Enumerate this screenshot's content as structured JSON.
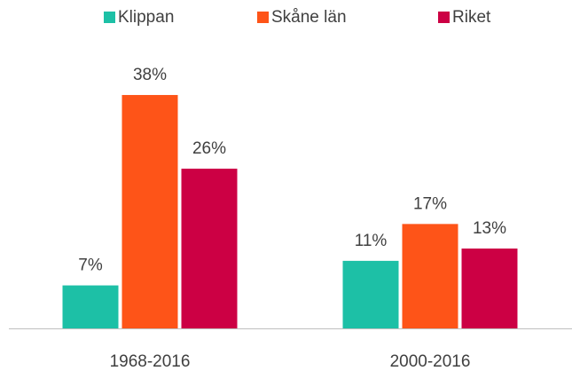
{
  "chart_data": {
    "type": "bar",
    "categories": [
      "1968-2016",
      "2000-2016"
    ],
    "series": [
      {
        "name": "Klippan",
        "color": "#1dc0a6",
        "values": [
          7,
          11
        ],
        "value_labels": [
          "7%",
          "11%"
        ]
      },
      {
        "name": "Skåne län",
        "color": "#fe5418",
        "values": [
          38,
          17
        ],
        "value_labels": [
          "38%",
          "17%"
        ]
      },
      {
        "name": "Riket",
        "color": "#cc0044",
        "values": [
          26,
          13
        ],
        "value_labels": [
          "26%",
          "13%"
        ]
      }
    ],
    "legend": "top"
  }
}
